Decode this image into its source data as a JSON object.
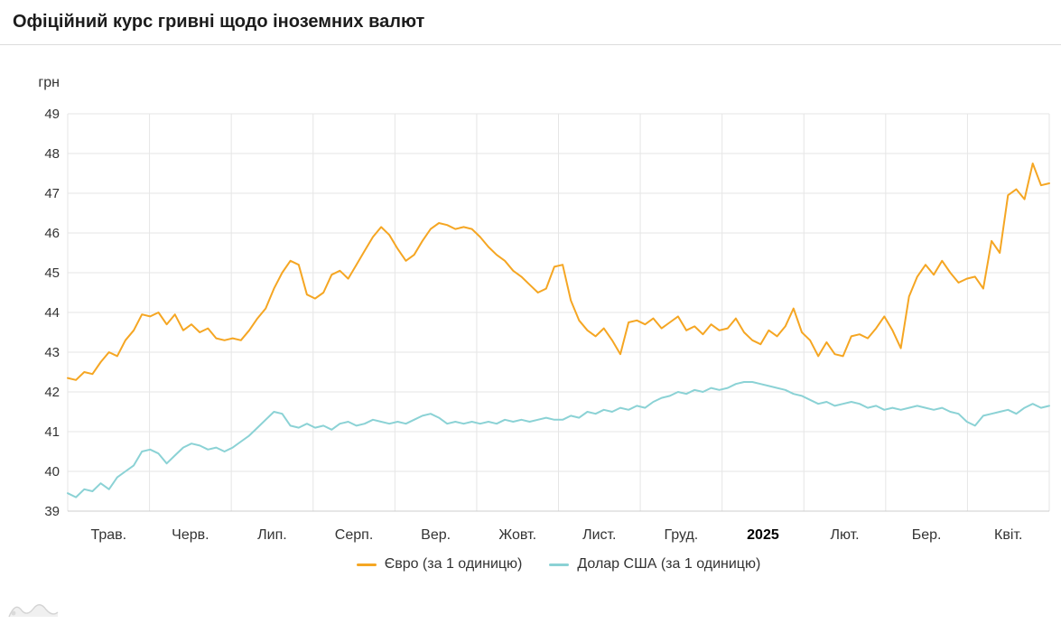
{
  "header": {
    "title": "Офіційний курс гривні щодо іноземних валют"
  },
  "chart_data": {
    "type": "line",
    "title": "Офіційний курс гривні щодо іноземних валют",
    "grid": true,
    "legend_position": "bottom",
    "y_axis": {
      "unit_label": "грн",
      "min": 39,
      "max": 49,
      "tick_interval": 1,
      "ticks": [
        39,
        40,
        41,
        42,
        43,
        44,
        45,
        46,
        47,
        48,
        49
      ]
    },
    "x_axis": {
      "tick_labels": [
        "Трав.",
        "Черв.",
        "Лип.",
        "Серп.",
        "Вер.",
        "Жовт.",
        "Лист.",
        "Груд.",
        "2025",
        "Лют.",
        "Бер.",
        "Квіт."
      ],
      "bold_label": "2025",
      "range": "Трав. 2024 — Квіт. 2025"
    },
    "series": [
      {
        "id": "euro",
        "name": "Євро (за 1 одиницю)",
        "color": "#f5a623",
        "values": [
          42.35,
          42.3,
          42.5,
          42.45,
          42.75,
          43.0,
          42.9,
          43.3,
          43.55,
          43.95,
          43.9,
          44.0,
          43.7,
          43.95,
          43.55,
          43.7,
          43.5,
          43.6,
          43.35,
          43.3,
          43.35,
          43.3,
          43.55,
          43.85,
          44.1,
          44.6,
          45.0,
          45.3,
          45.2,
          44.45,
          44.35,
          44.5,
          44.95,
          45.05,
          44.85,
          45.2,
          45.55,
          45.9,
          46.15,
          45.95,
          45.6,
          45.3,
          45.45,
          45.8,
          46.1,
          46.25,
          46.2,
          46.1,
          46.15,
          46.1,
          45.9,
          45.65,
          45.45,
          45.3,
          45.05,
          44.9,
          44.7,
          44.5,
          44.6,
          45.15,
          45.2,
          44.3,
          43.8,
          43.55,
          43.4,
          43.6,
          43.3,
          42.95,
          43.75,
          43.8,
          43.7,
          43.85,
          43.6,
          43.75,
          43.9,
          43.55,
          43.65,
          43.45,
          43.7,
          43.55,
          43.6,
          43.85,
          43.5,
          43.3,
          43.2,
          43.55,
          43.4,
          43.65,
          44.1,
          43.5,
          43.3,
          42.9,
          43.25,
          42.95,
          42.9,
          43.4,
          43.45,
          43.35,
          43.6,
          43.9,
          43.55,
          43.1,
          44.4,
          44.9,
          45.2,
          44.95,
          45.3,
          45.0,
          44.75,
          44.85,
          44.9,
          44.6,
          45.8,
          45.5,
          46.95,
          47.1,
          46.85,
          47.75,
          47.2,
          47.25
        ]
      },
      {
        "id": "usd",
        "name": "Долар США (за 1 одиницю)",
        "color": "#8bd2d5",
        "values": [
          39.45,
          39.35,
          39.55,
          39.5,
          39.7,
          39.55,
          39.85,
          40.0,
          40.15,
          40.5,
          40.55,
          40.45,
          40.2,
          40.4,
          40.6,
          40.7,
          40.65,
          40.55,
          40.6,
          40.5,
          40.6,
          40.75,
          40.9,
          41.1,
          41.3,
          41.5,
          41.45,
          41.15,
          41.1,
          41.2,
          41.1,
          41.15,
          41.05,
          41.2,
          41.25,
          41.15,
          41.2,
          41.3,
          41.25,
          41.2,
          41.25,
          41.2,
          41.3,
          41.4,
          41.45,
          41.35,
          41.2,
          41.25,
          41.2,
          41.25,
          41.2,
          41.25,
          41.2,
          41.3,
          41.25,
          41.3,
          41.25,
          41.3,
          41.35,
          41.3,
          41.3,
          41.4,
          41.35,
          41.5,
          41.45,
          41.55,
          41.5,
          41.6,
          41.55,
          41.65,
          41.6,
          41.75,
          41.85,
          41.9,
          42.0,
          41.95,
          42.05,
          42.0,
          42.1,
          42.05,
          42.1,
          42.2,
          42.25,
          42.25,
          42.2,
          42.15,
          42.1,
          42.05,
          41.95,
          41.9,
          41.8,
          41.7,
          41.75,
          41.65,
          41.7,
          41.75,
          41.7,
          41.6,
          41.65,
          41.55,
          41.6,
          41.55,
          41.6,
          41.65,
          41.6,
          41.55,
          41.6,
          41.5,
          41.45,
          41.25,
          41.15,
          41.4,
          41.45,
          41.5,
          41.55,
          41.45,
          41.6,
          41.7,
          41.6,
          41.65
        ]
      }
    ]
  }
}
